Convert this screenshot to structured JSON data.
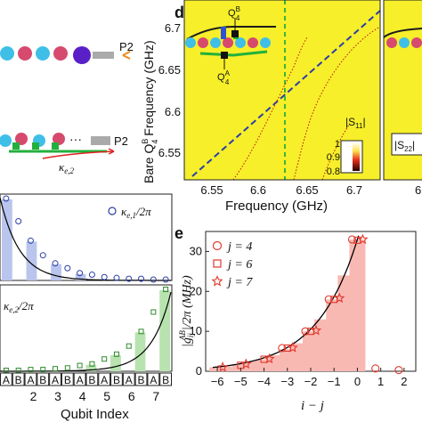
{
  "panels": {
    "d": {
      "letter": "d"
    },
    "e": {
      "letter": "e"
    }
  },
  "left_schematics": {
    "port_top": "P2",
    "port_bottom": "P2",
    "kappa_symbol": "κ",
    "kappa_sub": "e,2",
    "dots": "···"
  },
  "kappa_plot": {
    "legend_e1": "κ",
    "legend_e1_sub": "e,1",
    "legend_e1_tail": "/2π",
    "legend_e2": "κ",
    "legend_e2_sub": "e,2",
    "legend_e2_tail": "/2π",
    "ab_labels": [
      "A",
      "B",
      "A",
      "B",
      "A",
      "B",
      "A",
      "B",
      "A",
      "B",
      "A",
      "B",
      "A",
      "B"
    ],
    "qubit_numbers": [
      "2",
      "3",
      "4",
      "5",
      "6",
      "7"
    ],
    "xlabel": "Qubit Index",
    "colors": {
      "blue": "#b9c5ec",
      "green": "#b8e3b0",
      "marker_blue": "#2a3ea8",
      "marker_green": "#2f8a2f"
    }
  },
  "spectrum_plot": {
    "ylabel_main": "Bare Q",
    "ylabel_sup": "B",
    "ylabel_sub": "4",
    "ylabel_tail": " Frequency (GHz)",
    "xlabel": "Frequency (GHz)",
    "yticks": [
      "6.7",
      "6.65",
      "6.6",
      "6.55"
    ],
    "xticks": [
      "6.55",
      "6.6",
      "6.65",
      "6.7"
    ],
    "right_xtick": "6",
    "q4b": "Q",
    "q4b_sup": "B",
    "q4b_sub": "4",
    "q4a": "Q",
    "q4a_sup": "A",
    "q4a_sub": "4",
    "colorbar_title1": "|S",
    "colorbar_title1_sub": "11",
    "colorbar_title1_tail": "|",
    "colorbar_title2": "|S",
    "colorbar_title2_sub": "22",
    "colorbar_title2_tail": "|",
    "colorbar_ticks": [
      "1",
      "0.9",
      "0.8"
    ],
    "background": "#f6ef2a"
  },
  "chart_data": {
    "type": "bar",
    "x": [
      -6,
      -5,
      -4,
      -3,
      -2,
      -1,
      0,
      1,
      2
    ],
    "xlabel": "i − j",
    "ylabel": "|g",
    "ylabel_sub": "ij",
    "ylabel_sup": "AB",
    "ylabel_tail": "|/2π (MHz)",
    "ylim": [
      0,
      35
    ],
    "xlim": [
      -6.5,
      2.5
    ],
    "yticks": [
      "0",
      "10",
      "20",
      "30"
    ],
    "xticks": [
      "−6",
      "−5",
      "−4",
      "−3",
      "−2",
      "−1",
      "0",
      "1",
      "2"
    ],
    "bars_x": [
      -6,
      -5.5,
      -5,
      -4.5,
      -4,
      -3.5,
      -3,
      -2.5,
      -2,
      -1.5,
      -1,
      -0.5,
      0
    ],
    "bars": [
      1.0,
      1.2,
      1.8,
      2.5,
      3.0,
      4.0,
      5.5,
      7.0,
      10.0,
      13.0,
      18.0,
      24.0,
      33.0
    ],
    "series": [
      {
        "name": "j = 4",
        "marker": "circle",
        "x": [
          -3,
          -2,
          -1,
          0,
          1,
          2
        ],
        "values": [
          5.8,
          10.0,
          18.0,
          33.0,
          0.7,
          0.3
        ]
      },
      {
        "name": "j = 6",
        "marker": "square",
        "x": [
          -5,
          -4,
          -3,
          -2,
          -1,
          0
        ],
        "values": [
          1.5,
          3.0,
          5.8,
          10.0,
          18.0,
          32.8
        ]
      },
      {
        "name": "j = 7",
        "marker": "star",
        "x": [
          -6,
          -5,
          -4,
          -3,
          -2,
          -1,
          0
        ],
        "values": [
          1.0,
          1.8,
          3.1,
          5.9,
          10.2,
          18.3,
          33.0
        ]
      }
    ],
    "fit_curve": "exponential",
    "colors": {
      "bar": "#f9b9b3",
      "marker": "#e03a2e",
      "curve": "#000000"
    }
  }
}
